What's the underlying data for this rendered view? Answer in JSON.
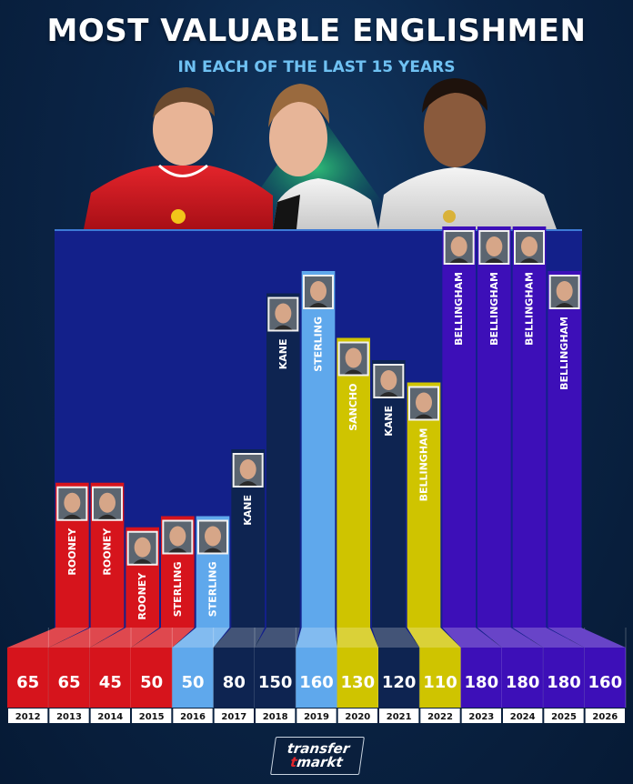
{
  "header": {
    "title": "MOST VALUABLE ENGLISHMEN",
    "subtitle": "IN EACH OF THE LAST 15 YEARS"
  },
  "logo": {
    "line1": "transfer",
    "line2_mark": "t",
    "line2": "markt"
  },
  "colors": {
    "red": "#d6141c",
    "light_blue": "#5fa8ec",
    "navy": "#0e2451",
    "yellow": "#cfc400",
    "purple": "#3d0fb8",
    "backdrop": "#13208a"
  },
  "chart_data": {
    "type": "bar",
    "title": "MOST VALUABLE ENGLISHMEN",
    "subtitle": "IN EACH OF THE LAST 15 YEARS",
    "ylim": [
      0,
      200
    ],
    "categories": [
      "2012",
      "2013",
      "2014",
      "2015",
      "2016",
      "2017",
      "2018",
      "2019",
      "2020",
      "2021",
      "2022",
      "2023",
      "2024",
      "2025",
      "2026"
    ],
    "values": [
      65,
      65,
      45,
      50,
      50,
      80,
      150,
      160,
      130,
      120,
      110,
      180,
      180,
      180,
      160
    ],
    "players": [
      "ROONEY",
      "ROONEY",
      "ROONEY",
      "STERLING",
      "STERLING",
      "KANE",
      "KANE",
      "STERLING",
      "SANCHO",
      "KANE",
      "BELLINGHAM",
      "BELLINGHAM",
      "BELLINGHAM",
      "BELLINGHAM",
      "BELLINGHAM"
    ],
    "bar_colors": [
      "red",
      "red",
      "red",
      "red",
      "light_blue",
      "navy",
      "navy",
      "light_blue",
      "yellow",
      "navy",
      "yellow",
      "purple",
      "purple",
      "purple",
      "purple"
    ],
    "grid": false,
    "legend": "none"
  }
}
